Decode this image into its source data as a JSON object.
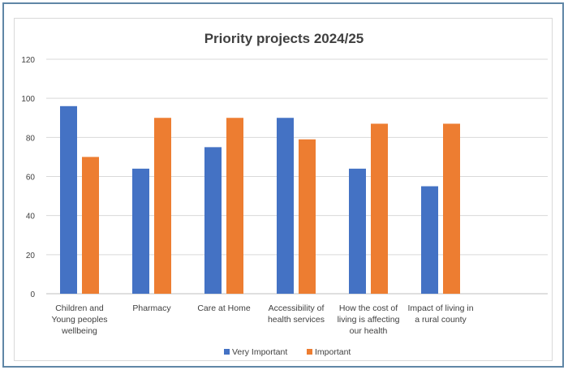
{
  "chart_data": {
    "type": "bar",
    "title": "Priority projects 2024/25",
    "xlabel": "",
    "ylabel": "",
    "ylim": [
      0,
      120
    ],
    "yticks": [
      0,
      20,
      40,
      60,
      80,
      100,
      120
    ],
    "grid": true,
    "legend_position": "bottom",
    "categories": [
      [
        "Children and",
        "Young peoples",
        "wellbeing"
      ],
      [
        "Pharmacy"
      ],
      [
        "Care at Home"
      ],
      [
        "Accessibility of",
        "health services"
      ],
      [
        "How the cost of",
        "living is affecting",
        "our health"
      ],
      [
        "Impact of living in",
        "a rural county"
      ]
    ],
    "series": [
      {
        "name": "Very Important",
        "color": "#4472c4",
        "values": [
          96,
          64,
          75,
          90,
          64,
          55
        ]
      },
      {
        "name": "Important",
        "color": "#ed7d31",
        "values": [
          70,
          90,
          90,
          79,
          87,
          87
        ]
      }
    ]
  }
}
